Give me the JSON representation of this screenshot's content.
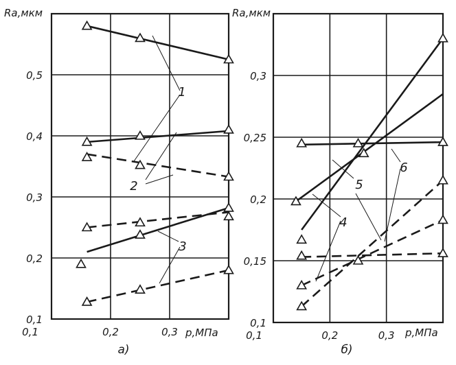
{
  "colors": {
    "ink": "#1a1a1a",
    "paper": "#ffffff"
  },
  "chart_data": [
    {
      "type": "line",
      "caption": "а)",
      "ylabel": "Ra,мкм",
      "xlabel": "p,МПа",
      "ylim": [
        0.1,
        0.6
      ],
      "xlim": [
        0.1,
        0.4
      ],
      "y_ticks": [
        {
          "v": 0.1,
          "label": "0,1"
        },
        {
          "v": 0.2,
          "label": "0,2"
        },
        {
          "v": 0.3,
          "label": "0,3"
        },
        {
          "v": 0.4,
          "label": "0,4"
        },
        {
          "v": 0.5,
          "label": "0,5"
        }
      ],
      "x_ticks": [
        {
          "v": 0.2,
          "label": "0,2"
        },
        {
          "v": 0.3,
          "label": "0,3"
        }
      ],
      "grid": true,
      "series": [
        {
          "label": "1",
          "style": "solid",
          "points": [
            [
              0.16,
              0.58
            ],
            [
              0.25,
              0.56
            ],
            [
              0.4,
              0.525
            ]
          ],
          "line": [
            [
              0.16,
              0.58
            ],
            [
              0.4,
              0.525
            ]
          ]
        },
        {
          "label": "1",
          "style": "dashed",
          "points": [
            [
              0.16,
              0.365
            ],
            [
              0.25,
              0.352
            ],
            [
              0.4,
              0.333
            ]
          ],
          "line": [
            [
              0.16,
              0.37
            ],
            [
              0.4,
              0.333
            ]
          ]
        },
        {
          "label": "2",
          "style": "solid",
          "points": [
            [
              0.16,
              0.39
            ],
            [
              0.25,
              0.4
            ],
            [
              0.4,
              0.41
            ]
          ],
          "line": [
            [
              0.16,
              0.39
            ],
            [
              0.4,
              0.408
            ]
          ]
        },
        {
          "label": "2",
          "style": "dashed",
          "points": [
            [
              0.16,
              0.25
            ],
            [
              0.25,
              0.258
            ],
            [
              0.4,
              0.268
            ]
          ],
          "line": [
            [
              0.16,
              0.25
            ],
            [
              0.4,
              0.275
            ]
          ]
        },
        {
          "label": "3",
          "style": "solid",
          "points": [
            [
              0.15,
              0.19
            ],
            [
              0.25,
              0.238
            ],
            [
              0.4,
              0.282
            ]
          ],
          "line": [
            [
              0.16,
              0.21
            ],
            [
              0.4,
              0.282
            ]
          ]
        },
        {
          "label": "3",
          "style": "dashed",
          "points": [
            [
              0.16,
              0.128
            ],
            [
              0.25,
              0.148
            ],
            [
              0.4,
              0.18
            ]
          ],
          "line": [
            [
              0.16,
              0.128
            ],
            [
              0.4,
              0.18
            ]
          ]
        }
      ],
      "annotations": [
        "1",
        "2",
        "3"
      ]
    },
    {
      "type": "line",
      "caption": "б)",
      "ylabel": "Ra,мкм",
      "xlabel": "p,МПа",
      "ylim": [
        0.1,
        0.35
      ],
      "xlim": [
        0.1,
        0.4
      ],
      "y_ticks": [
        {
          "v": 0.1,
          "label": "0,1"
        },
        {
          "v": 0.15,
          "label": "0,15"
        },
        {
          "v": 0.2,
          "label": "0,2"
        },
        {
          "v": 0.25,
          "label": "0,25"
        },
        {
          "v": 0.3,
          "label": "0,3"
        }
      ],
      "x_ticks": [
        {
          "v": 0.2,
          "label": "0,2"
        },
        {
          "v": 0.3,
          "label": "0,3"
        }
      ],
      "grid": true,
      "series": [
        {
          "label": "4",
          "style": "solid",
          "points": [
            [
              0.15,
              0.167
            ]
          ],
          "line": [
            [
              0.15,
              0.175
            ],
            [
              0.4,
              0.33
            ]
          ]
        },
        {
          "label": "4",
          "style": "dashed",
          "points": [
            [
              0.15,
              0.113
            ],
            [
              0.4,
              0.215
            ]
          ],
          "line": [
            [
              0.15,
              0.113
            ],
            [
              0.4,
              0.215
            ]
          ]
        },
        {
          "label": "5",
          "style": "solid",
          "points": [
            [
              0.14,
              0.198
            ],
            [
              0.26,
              0.237
            ],
            [
              0.4,
              0.33
            ]
          ],
          "line": [
            [
              0.14,
              0.198
            ],
            [
              0.4,
              0.285
            ]
          ]
        },
        {
          "label": "5",
          "style": "dashed",
          "points": [
            [
              0.15,
              0.13
            ],
            [
              0.25,
              0.15
            ],
            [
              0.4,
              0.183
            ]
          ],
          "line": [
            [
              0.15,
              0.13
            ],
            [
              0.4,
              0.183
            ]
          ]
        },
        {
          "label": "6",
          "style": "solid",
          "points": [
            [
              0.15,
              0.245
            ],
            [
              0.25,
              0.245
            ],
            [
              0.4,
              0.246
            ]
          ],
          "line": [
            [
              0.15,
              0.244
            ],
            [
              0.4,
              0.246
            ]
          ]
        },
        {
          "label": "6",
          "style": "dashed",
          "points": [
            [
              0.15,
              0.154
            ],
            [
              0.4,
              0.156
            ]
          ],
          "line": [
            [
              0.15,
              0.153
            ],
            [
              0.4,
              0.156
            ]
          ]
        }
      ],
      "annotations": [
        "4",
        "5",
        "6"
      ]
    }
  ]
}
